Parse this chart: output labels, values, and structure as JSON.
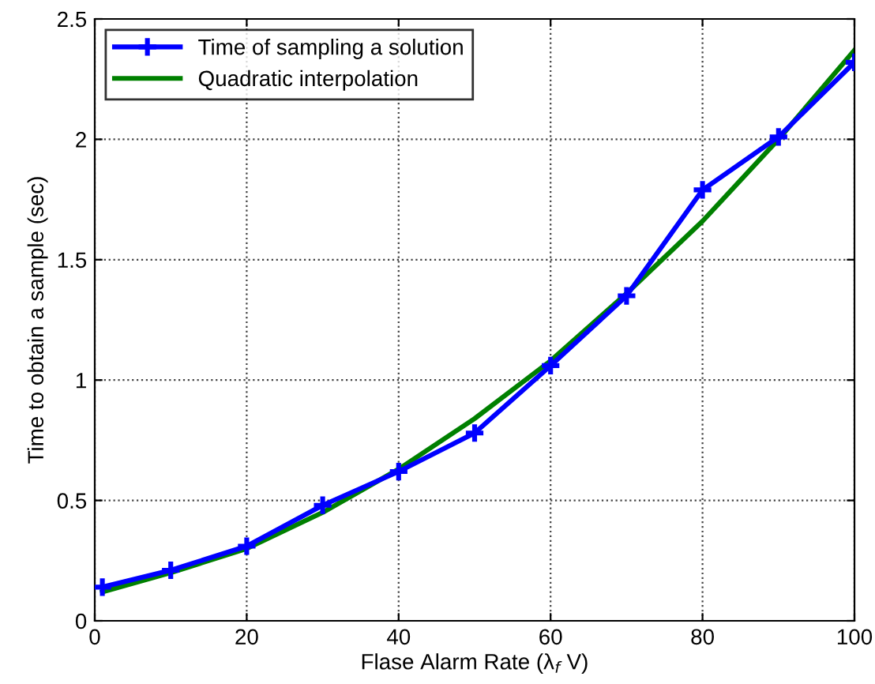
{
  "chart_data": {
    "type": "line",
    "xlabel": "Flase Alarm Rate (λ$_{f}$ V)",
    "ylabel": "Time to obtain a sample (sec)",
    "x": [
      1,
      10,
      20,
      30,
      40,
      50,
      60,
      70,
      80,
      90,
      100
    ],
    "series": [
      {
        "name": "Time of sampling a solution",
        "color": "#0000ff",
        "marker": "cross",
        "values": [
          0.14,
          0.21,
          0.31,
          0.48,
          0.62,
          0.78,
          1.06,
          1.35,
          1.79,
          2.01,
          2.32
        ]
      },
      {
        "name": "Quadratic interpolation",
        "color": "#008000",
        "marker": "none",
        "x": [
          1,
          10,
          20,
          30,
          40,
          50,
          60,
          70,
          80,
          90,
          100
        ],
        "values": [
          0.12,
          0.2,
          0.3,
          0.45,
          0.63,
          0.84,
          1.08,
          1.36,
          1.66,
          2.0,
          2.37
        ]
      }
    ],
    "xlim": [
      0,
      100
    ],
    "xticks": [
      0,
      20,
      40,
      60,
      80,
      100
    ],
    "ylim": [
      0,
      2.5
    ],
    "yticks": [
      0,
      0.5,
      1,
      1.5,
      2,
      2.5
    ],
    "grid": true,
    "legend": "top left",
    "line_style": "solid"
  }
}
